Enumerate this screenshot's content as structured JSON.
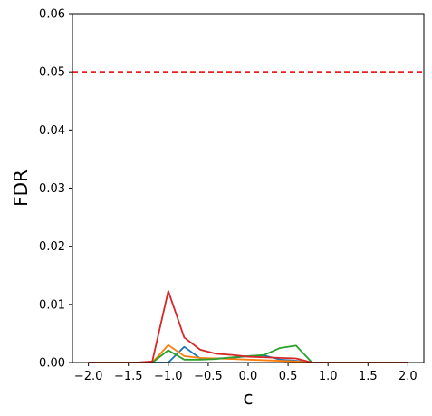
{
  "chart_data": {
    "type": "line",
    "title": "",
    "xlabel": "c",
    "ylabel": "FDR",
    "xlim": [
      -2.2,
      2.2
    ],
    "ylim": [
      0,
      0.06
    ],
    "xticks": [
      -2.0,
      -1.5,
      -1.0,
      -0.5,
      0.0,
      0.5,
      1.0,
      1.5,
      2.0
    ],
    "xtick_labels": [
      "−2.0",
      "−1.5",
      "−1.0",
      "−0.5",
      "0.0",
      "0.5",
      "1.0",
      "1.5",
      "2.0"
    ],
    "yticks": [
      0,
      0.01,
      0.02,
      0.03,
      0.04,
      0.05,
      0.06
    ],
    "ytick_labels": [
      "0.00",
      "0.01",
      "0.02",
      "0.03",
      "0.04",
      "0.05",
      "0.06"
    ],
    "grid": false,
    "reference_line": {
      "y": 0.05,
      "style": "dashed",
      "color": "#e8201f"
    },
    "x": [
      -2.0,
      -1.8,
      -1.6,
      -1.4,
      -1.2,
      -1.0,
      -0.8,
      -0.6,
      -0.4,
      -0.2,
      0.0,
      0.2,
      0.4,
      0.6,
      0.8,
      1.0,
      1.2,
      1.4,
      1.6,
      1.8,
      2.0
    ],
    "series": [
      {
        "color": "#1f77b4",
        "values": [
          0,
          0,
          0,
          0,
          0,
          0,
          0.0027,
          0.0007,
          0.0007,
          0.0008,
          0.0011,
          0.0012,
          0.0005,
          0.0003,
          0,
          0,
          0,
          0,
          0,
          0,
          0
        ]
      },
      {
        "color": "#ff7f0e",
        "values": [
          0,
          0,
          0,
          0,
          0,
          0.003,
          0.0011,
          0.0008,
          0.0007,
          0.0006,
          0.0005,
          0.0004,
          0.0003,
          0.0002,
          0,
          0,
          0,
          0,
          0,
          0,
          0
        ]
      },
      {
        "color": "#2ca02c",
        "values": [
          0,
          0,
          0,
          0,
          0,
          0.0021,
          0.0005,
          0.0005,
          0.0006,
          0.0009,
          0.0011,
          0.0013,
          0.0025,
          0.0029,
          0,
          0,
          0,
          0,
          0,
          0,
          0
        ]
      },
      {
        "color": "#d62728",
        "values": [
          0,
          0,
          0,
          0,
          0.0002,
          0.0123,
          0.0043,
          0.0022,
          0.0015,
          0.0013,
          0.001,
          0.0009,
          0.0008,
          0.0007,
          0,
          0,
          0,
          0,
          0,
          0,
          0
        ]
      }
    ]
  }
}
